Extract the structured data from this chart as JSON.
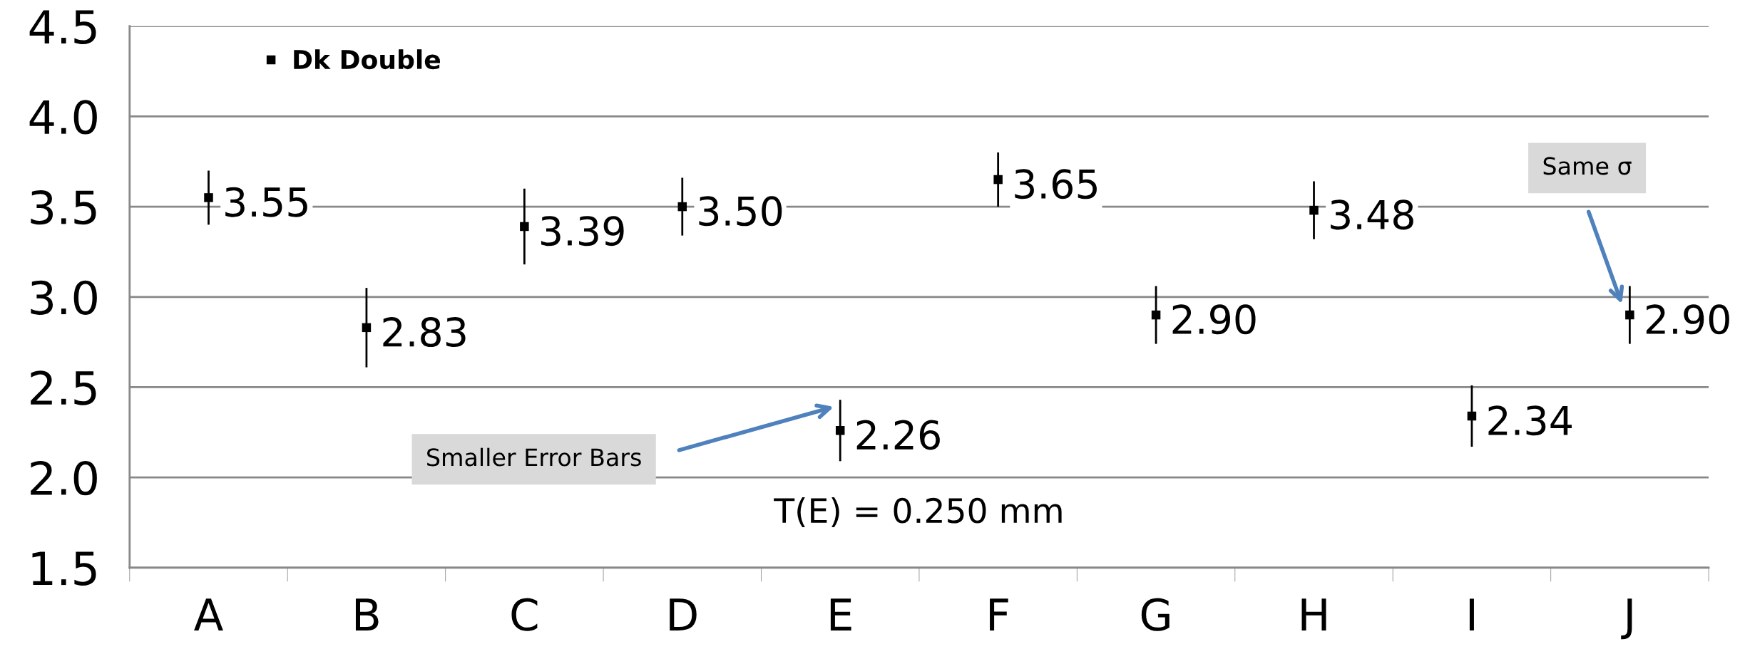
{
  "chart_data": {
    "type": "scatter",
    "categories": [
      "A",
      "B",
      "C",
      "D",
      "E",
      "F",
      "G",
      "H",
      "I",
      "J"
    ],
    "series": [
      {
        "name": "Dk Double",
        "color": "#000000",
        "values": [
          3.55,
          2.83,
          3.39,
          3.5,
          2.26,
          3.65,
          2.9,
          3.48,
          2.34,
          2.9
        ],
        "errors": [
          0.15,
          0.22,
          0.21,
          0.16,
          0.17,
          0.15,
          0.16,
          0.16,
          0.17,
          0.16
        ],
        "value_labels": [
          "3.55",
          "2.83",
          "3.39",
          "3.50",
          "2.26",
          "3.65",
          "2.90",
          "3.48",
          "2.34",
          "2.90"
        ]
      }
    ],
    "ylim": [
      1.5,
      4.5
    ],
    "yticks": [
      {
        "value": 1.5,
        "label": "1.5"
      },
      {
        "value": 2.0,
        "label": "2.0"
      },
      {
        "value": 2.5,
        "label": "2.5"
      },
      {
        "value": 3.0,
        "label": "3.0"
      },
      {
        "value": 3.5,
        "label": "3.5"
      },
      {
        "value": 4.0,
        "label": "4.0"
      },
      {
        "value": 4.5,
        "label": "4.5"
      }
    ],
    "grid": "y",
    "legend": "top left",
    "marker": "square",
    "annotations": [
      "Smaller Error Bars",
      "Same σ",
      "T(E) = 0.250 mm"
    ]
  }
}
